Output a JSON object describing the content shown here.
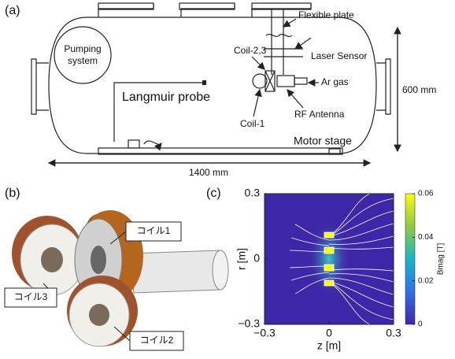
{
  "panel_a": {
    "label": "(a)",
    "pumping": [
      "Pumping",
      "system"
    ],
    "flexible_plate": "Flexible plate",
    "laser_sensor": "Laser Sensor",
    "coil_23": "Coil-2,3",
    "ar_gas": "Ar gas",
    "rf_antenna": "RF Antenna",
    "coil_1": "Coil-1",
    "langmuir_probe": "Langmuir probe",
    "motor_stage": "Motor stage",
    "height": "600 mm",
    "width": "1400 mm"
  },
  "panel_b": {
    "label": "(b)",
    "coil_1": "コイル1",
    "coil_2": "コイル2",
    "coil_3": "コイル3"
  },
  "panel_c": {
    "label": "(c)",
    "x_label": "z [m]",
    "y_label": "r [m]",
    "colorbar_label": "Bmag [T]",
    "xlim": [
      -0.3,
      0.3
    ],
    "ylim": [
      -0.3,
      0.3
    ],
    "xticks": [
      {
        "value": -0.3,
        "label": "−0.3"
      },
      0,
      0.3
    ],
    "yticks": [
      0.3,
      0,
      {
        "value": -0.3,
        "label": "−0.3"
      }
    ],
    "clim": [
      0,
      0.06
    ],
    "cticks": [
      0,
      0.02,
      0.04,
      0.06
    ]
  }
}
